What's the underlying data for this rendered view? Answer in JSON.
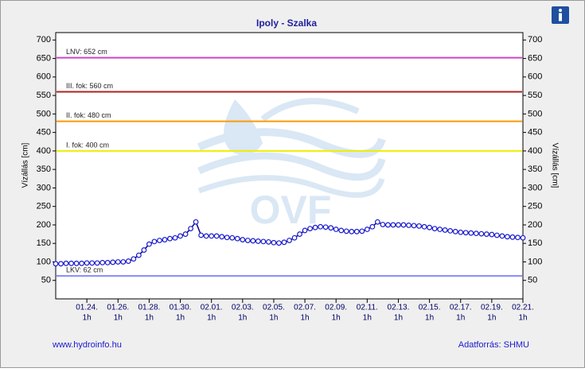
{
  "chart_data": {
    "type": "line",
    "title": "Ipoly - Szalka",
    "y_label": "Vízállás [cm]",
    "y2_label": "Vízállás [cm]",
    "watermark": "OVF",
    "footer_left": "www.hydroinfo.hu",
    "footer_right": "Adatforrás: SHMU",
    "color": "#00008b",
    "xlim": [
      0,
      720
    ],
    "xticks": [
      {
        "value": 48,
        "label": "01.24."
      },
      {
        "value": 96,
        "label": "01.26."
      },
      {
        "value": 144,
        "label": "01.28."
      },
      {
        "value": 192,
        "label": "01.30."
      },
      {
        "value": 240,
        "label": "02.01."
      },
      {
        "value": 288,
        "label": "02.03."
      },
      {
        "value": 336,
        "label": "02.05."
      },
      {
        "value": 384,
        "label": "02.07."
      },
      {
        "value": 432,
        "label": "02.09."
      },
      {
        "value": 480,
        "label": "02.11."
      },
      {
        "value": 528,
        "label": "02.13."
      },
      {
        "value": 576,
        "label": "02.15."
      },
      {
        "value": 624,
        "label": "02.17."
      },
      {
        "value": 672,
        "label": "02.19."
      },
      {
        "value": 720,
        "label": "02.21."
      }
    ],
    "xtick_sublabel": "1h",
    "ylim": [
      0,
      720
    ],
    "yticks": [
      50,
      100,
      150,
      200,
      250,
      300,
      350,
      400,
      450,
      500,
      550,
      600,
      650,
      700
    ],
    "y2lim": [
      0,
      720
    ],
    "y2ticks": [
      50,
      100,
      150,
      200,
      250,
      300,
      350,
      400,
      450,
      500,
      550,
      600,
      650,
      700
    ],
    "levels": [
      {
        "label": "LNV: 652 cm",
        "value": 652,
        "color": "#cc44cc"
      },
      {
        "label": "III. fok: 560 cm",
        "value": 560,
        "color": "#b22222"
      },
      {
        "label": "II. fok: 480 cm",
        "value": 480,
        "color": "#ff9900"
      },
      {
        "label": "I. fok: 400 cm",
        "value": 400,
        "color": "#eeee00"
      },
      {
        "label": "LKV: 62 cm",
        "value": 62,
        "color": "#8888ff"
      }
    ],
    "x": [
      0,
      8,
      16,
      24,
      32,
      40,
      48,
      56,
      64,
      72,
      80,
      88,
      96,
      104,
      112,
      120,
      128,
      136,
      144,
      152,
      160,
      168,
      176,
      184,
      192,
      200,
      208,
      216,
      224,
      232,
      240,
      248,
      256,
      264,
      272,
      280,
      288,
      296,
      304,
      312,
      320,
      328,
      336,
      344,
      352,
      360,
      368,
      376,
      384,
      392,
      400,
      408,
      416,
      424,
      432,
      440,
      448,
      456,
      464,
      472,
      480,
      488,
      496,
      504,
      512,
      520,
      528,
      536,
      544,
      552,
      560,
      568,
      576,
      584,
      592,
      600,
      608,
      616,
      624,
      632,
      640,
      648,
      656,
      664,
      672,
      680,
      688,
      696,
      704,
      712,
      720
    ],
    "values": [
      95,
      95,
      96,
      96,
      96,
      96,
      97,
      97,
      97,
      98,
      98,
      99,
      100,
      100,
      102,
      108,
      118,
      132,
      148,
      155,
      158,
      160,
      163,
      165,
      170,
      175,
      190,
      208,
      172,
      170,
      170,
      170,
      168,
      166,
      165,
      163,
      160,
      158,
      157,
      156,
      155,
      154,
      152,
      151,
      153,
      158,
      165,
      175,
      185,
      190,
      193,
      195,
      194,
      192,
      188,
      185,
      183,
      182,
      182,
      183,
      188,
      195,
      208,
      201,
      200,
      200,
      200,
      200,
      199,
      198,
      197,
      195,
      193,
      190,
      188,
      186,
      184,
      182,
      180,
      179,
      178,
      177,
      176,
      175,
      174,
      172,
      170,
      168,
      167,
      166,
      165
    ]
  }
}
